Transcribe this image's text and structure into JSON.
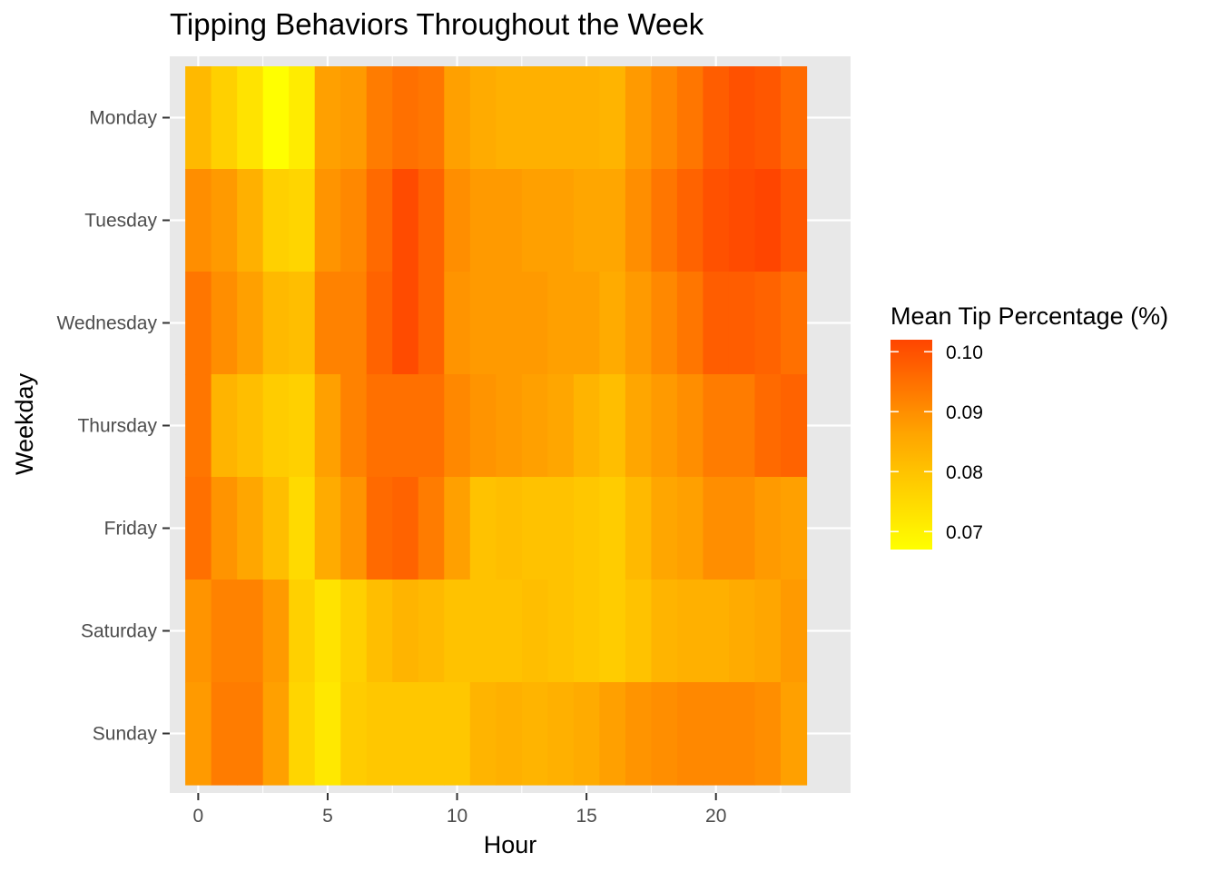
{
  "chart_data": {
    "type": "heatmap",
    "title": "Tipping Behaviors Throughout the Week",
    "xlabel": "Hour",
    "ylabel": "Weekday",
    "x_ticks": [
      0,
      5,
      10,
      15,
      20
    ],
    "x": [
      0,
      1,
      2,
      3,
      4,
      5,
      6,
      7,
      8,
      9,
      10,
      11,
      12,
      13,
      14,
      15,
      16,
      17,
      18,
      19,
      20,
      21,
      22,
      23
    ],
    "y": [
      "Monday",
      "Tuesday",
      "Wednesday",
      "Thursday",
      "Friday",
      "Saturday",
      "Sunday"
    ],
    "values": [
      [
        0.082,
        0.077,
        0.073,
        0.067,
        0.071,
        0.087,
        0.088,
        0.093,
        0.095,
        0.094,
        0.087,
        0.085,
        0.084,
        0.084,
        0.084,
        0.084,
        0.083,
        0.088,
        0.091,
        0.094,
        0.098,
        0.1,
        0.099,
        0.096
      ],
      [
        0.09,
        0.088,
        0.084,
        0.077,
        0.076,
        0.089,
        0.091,
        0.096,
        0.101,
        0.097,
        0.09,
        0.088,
        0.088,
        0.087,
        0.087,
        0.086,
        0.086,
        0.09,
        0.094,
        0.097,
        0.1,
        0.101,
        0.102,
        0.099
      ],
      [
        0.094,
        0.09,
        0.087,
        0.082,
        0.081,
        0.092,
        0.092,
        0.097,
        0.101,
        0.097,
        0.089,
        0.088,
        0.088,
        0.088,
        0.087,
        0.087,
        0.085,
        0.088,
        0.091,
        0.094,
        0.098,
        0.098,
        0.097,
        0.095
      ],
      [
        0.094,
        0.083,
        0.081,
        0.078,
        0.077,
        0.087,
        0.092,
        0.095,
        0.095,
        0.095,
        0.091,
        0.089,
        0.088,
        0.087,
        0.086,
        0.083,
        0.081,
        0.086,
        0.088,
        0.09,
        0.093,
        0.093,
        0.096,
        0.097
      ],
      [
        0.095,
        0.089,
        0.086,
        0.081,
        0.075,
        0.085,
        0.089,
        0.096,
        0.097,
        0.093,
        0.087,
        0.08,
        0.081,
        0.08,
        0.08,
        0.079,
        0.078,
        0.082,
        0.086,
        0.087,
        0.09,
        0.09,
        0.088,
        0.087
      ],
      [
        0.089,
        0.092,
        0.092,
        0.088,
        0.077,
        0.073,
        0.077,
        0.081,
        0.083,
        0.082,
        0.08,
        0.08,
        0.08,
        0.081,
        0.08,
        0.079,
        0.078,
        0.08,
        0.083,
        0.084,
        0.084,
        0.085,
        0.086,
        0.088
      ],
      [
        0.088,
        0.093,
        0.093,
        0.087,
        0.076,
        0.072,
        0.078,
        0.079,
        0.079,
        0.079,
        0.079,
        0.083,
        0.084,
        0.083,
        0.084,
        0.085,
        0.087,
        0.089,
        0.09,
        0.091,
        0.091,
        0.091,
        0.09,
        0.087
      ]
    ],
    "color_scale": {
      "low": "#ffff00",
      "mid": "#ffa500",
      "high": "#ff4500",
      "min": 0.067,
      "max": 0.102
    },
    "legend": {
      "title": "Mean Tip Percentage (%)",
      "ticks": [
        0.07,
        0.08,
        0.09,
        0.1
      ],
      "tick_labels": [
        "0.07",
        "0.08",
        "0.09",
        "0.10"
      ],
      "position": "right"
    },
    "panel_background": "#e8e8e8",
    "gridline_color": "#ffffff",
    "grid": true
  }
}
